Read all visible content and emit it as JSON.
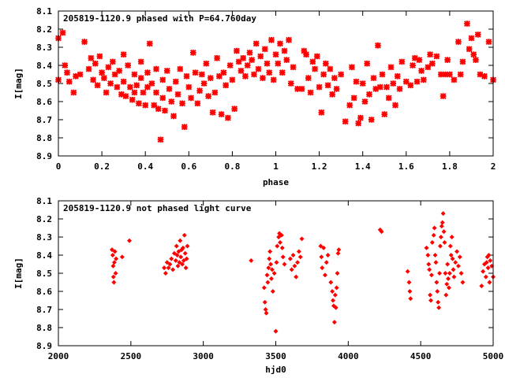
{
  "chart_data": [
    {
      "type": "scatter",
      "title": "205819-1120.9 phased with P=64.760day",
      "xlabel": "phase",
      "ylabel": "I[mag]",
      "xlim": [
        0,
        2
      ],
      "ylim": [
        8.1,
        8.9
      ],
      "y_inverted": true,
      "x_ticks": [
        "0",
        "0.2",
        "0.4",
        "0.6",
        "0.8",
        "1",
        "1.2",
        "1.4",
        "1.6",
        "1.8",
        "2"
      ],
      "y_ticks": [
        "8.1",
        "8.2",
        "8.3",
        "8.4",
        "8.5",
        "8.6",
        "8.7",
        "8.8",
        "8.9"
      ],
      "marker": "star",
      "color": "#ff0000",
      "points": [
        [
          0.0,
          8.25
        ],
        [
          0.0,
          8.48
        ],
        [
          0.02,
          8.22
        ],
        [
          0.03,
          8.4
        ],
        [
          0.04,
          8.44
        ],
        [
          0.05,
          8.49
        ],
        [
          0.07,
          8.55
        ],
        [
          0.08,
          8.46
        ],
        [
          0.1,
          8.45
        ],
        [
          0.12,
          8.27
        ],
        [
          0.14,
          8.42
        ],
        [
          0.15,
          8.36
        ],
        [
          0.16,
          8.48
        ],
        [
          0.17,
          8.39
        ],
        [
          0.18,
          8.51
        ],
        [
          0.19,
          8.35
        ],
        [
          0.2,
          8.44
        ],
        [
          0.21,
          8.47
        ],
        [
          0.22,
          8.55
        ],
        [
          0.23,
          8.41
        ],
        [
          0.24,
          8.5
        ],
        [
          0.25,
          8.38
        ],
        [
          0.26,
          8.45
        ],
        [
          0.27,
          8.52
        ],
        [
          0.28,
          8.43
        ],
        [
          0.29,
          8.56
        ],
        [
          0.3,
          8.34
        ],
        [
          0.3,
          8.49
        ],
        [
          0.31,
          8.57
        ],
        [
          0.32,
          8.4
        ],
        [
          0.33,
          8.52
        ],
        [
          0.34,
          8.59
        ],
        [
          0.35,
          8.45
        ],
        [
          0.35,
          8.55
        ],
        [
          0.36,
          8.51
        ],
        [
          0.37,
          8.61
        ],
        [
          0.38,
          8.38
        ],
        [
          0.38,
          8.47
        ],
        [
          0.39,
          8.55
        ],
        [
          0.4,
          8.62
        ],
        [
          0.41,
          8.44
        ],
        [
          0.41,
          8.52
        ],
        [
          0.42,
          8.28
        ],
        [
          0.43,
          8.5
        ],
        [
          0.44,
          8.62
        ],
        [
          0.45,
          8.42
        ],
        [
          0.45,
          8.55
        ],
        [
          0.46,
          8.64
        ],
        [
          0.47,
          8.81
        ],
        [
          0.48,
          8.48
        ],
        [
          0.48,
          8.58
        ],
        [
          0.49,
          8.65
        ],
        [
          0.5,
          8.43
        ],
        [
          0.51,
          8.53
        ],
        [
          0.52,
          8.6
        ],
        [
          0.53,
          8.68
        ],
        [
          0.54,
          8.49
        ],
        [
          0.55,
          8.56
        ],
        [
          0.56,
          8.42
        ],
        [
          0.57,
          8.61
        ],
        [
          0.58,
          8.74
        ],
        [
          0.59,
          8.46
        ],
        [
          0.6,
          8.52
        ],
        [
          0.61,
          8.58
        ],
        [
          0.62,
          8.33
        ],
        [
          0.63,
          8.44
        ],
        [
          0.64,
          8.61
        ],
        [
          0.65,
          8.54
        ],
        [
          0.66,
          8.45
        ],
        [
          0.67,
          8.5
        ],
        [
          0.68,
          8.39
        ],
        [
          0.69,
          8.57
        ],
        [
          0.7,
          8.47
        ],
        [
          0.71,
          8.66
        ],
        [
          0.72,
          8.55
        ],
        [
          0.73,
          8.36
        ],
        [
          0.74,
          8.46
        ],
        [
          0.75,
          8.67
        ],
        [
          0.76,
          8.44
        ],
        [
          0.77,
          8.51
        ],
        [
          0.78,
          8.69
        ],
        [
          0.79,
          8.4
        ],
        [
          0.8,
          8.48
        ],
        [
          0.81,
          8.64
        ],
        [
          0.82,
          8.32
        ],
        [
          0.83,
          8.38
        ],
        [
          0.84,
          8.43
        ],
        [
          0.85,
          8.36
        ],
        [
          0.86,
          8.46
        ],
        [
          0.87,
          8.4
        ],
        [
          0.88,
          8.33
        ],
        [
          0.89,
          8.37
        ],
        [
          0.9,
          8.45
        ],
        [
          0.91,
          8.28
        ],
        [
          0.92,
          8.42
        ],
        [
          0.93,
          8.35
        ],
        [
          0.94,
          8.47
        ],
        [
          0.95,
          8.31
        ],
        [
          0.96,
          8.39
        ],
        [
          0.97,
          8.44
        ],
        [
          0.98,
          8.26
        ],
        [
          0.99,
          8.48
        ],
        [
          1.0,
          8.34
        ],
        [
          1.01,
          8.39
        ],
        [
          1.02,
          8.28
        ],
        [
          1.03,
          8.44
        ],
        [
          1.04,
          8.32
        ],
        [
          1.05,
          8.37
        ],
        [
          1.06,
          8.26
        ],
        [
          1.07,
          8.5
        ],
        [
          1.08,
          8.41
        ],
        [
          1.1,
          8.53
        ],
        [
          1.12,
          8.53
        ],
        [
          1.13,
          8.32
        ],
        [
          1.14,
          8.34
        ],
        [
          1.15,
          8.47
        ],
        [
          1.16,
          8.55
        ],
        [
          1.17,
          8.38
        ],
        [
          1.18,
          8.42
        ],
        [
          1.19,
          8.35
        ],
        [
          1.2,
          8.52
        ],
        [
          1.21,
          8.66
        ],
        [
          1.22,
          8.45
        ],
        [
          1.23,
          8.39
        ],
        [
          1.24,
          8.51
        ],
        [
          1.25,
          8.42
        ],
        [
          1.26,
          8.56
        ],
        [
          1.27,
          8.47
        ],
        [
          1.28,
          8.53
        ],
        [
          1.3,
          8.45
        ],
        [
          1.32,
          8.71
        ],
        [
          1.34,
          8.62
        ],
        [
          1.35,
          8.41
        ],
        [
          1.36,
          8.58
        ],
        [
          1.37,
          8.49
        ],
        [
          1.38,
          8.72
        ],
        [
          1.39,
          8.69
        ],
        [
          1.4,
          8.5
        ],
        [
          1.41,
          8.6
        ],
        [
          1.42,
          8.39
        ],
        [
          1.43,
          8.56
        ],
        [
          1.44,
          8.7
        ],
        [
          1.45,
          8.47
        ],
        [
          1.46,
          8.53
        ],
        [
          1.47,
          8.29
        ],
        [
          1.48,
          8.52
        ],
        [
          1.49,
          8.45
        ],
        [
          1.5,
          8.67
        ],
        [
          1.51,
          8.52
        ],
        [
          1.52,
          8.58
        ],
        [
          1.53,
          8.41
        ],
        [
          1.54,
          8.5
        ],
        [
          1.55,
          8.62
        ],
        [
          1.56,
          8.46
        ],
        [
          1.57,
          8.53
        ],
        [
          1.58,
          8.38
        ],
        [
          1.6,
          8.49
        ],
        [
          1.62,
          8.51
        ],
        [
          1.63,
          8.4
        ],
        [
          1.64,
          8.36
        ],
        [
          1.65,
          8.49
        ],
        [
          1.66,
          8.37
        ],
        [
          1.67,
          8.43
        ],
        [
          1.68,
          8.48
        ],
        [
          1.7,
          8.41
        ],
        [
          1.71,
          8.34
        ],
        [
          1.72,
          8.39
        ],
        [
          1.74,
          8.35
        ],
        [
          1.76,
          8.45
        ],
        [
          1.77,
          8.57
        ],
        [
          1.78,
          8.45
        ],
        [
          1.79,
          8.37
        ],
        [
          1.8,
          8.45
        ],
        [
          1.82,
          8.48
        ],
        [
          1.84,
          8.27
        ],
        [
          1.85,
          8.45
        ],
        [
          1.86,
          8.38
        ],
        [
          1.88,
          8.17
        ],
        [
          1.89,
          8.31
        ],
        [
          1.9,
          8.25
        ],
        [
          1.91,
          8.34
        ],
        [
          1.92,
          8.37
        ],
        [
          1.93,
          8.23
        ],
        [
          1.94,
          8.45
        ],
        [
          1.96,
          8.46
        ],
        [
          1.98,
          8.27
        ],
        [
          2.0,
          8.48
        ]
      ]
    },
    {
      "type": "scatter",
      "title": "205819-1120.9 not phased light curve",
      "xlabel": "hjd0",
      "ylabel": "I[mag]",
      "xlim": [
        2000,
        5000
      ],
      "ylim": [
        8.1,
        8.9
      ],
      "y_inverted": true,
      "x_ticks": [
        "2000",
        "2500",
        "3000",
        "3500",
        "4000",
        "4500",
        "5000"
      ],
      "y_ticks": [
        "8.1",
        "8.2",
        "8.3",
        "8.4",
        "8.5",
        "8.6",
        "8.7",
        "8.8",
        "8.9"
      ],
      "marker": "diamond",
      "color": "#ff0000",
      "points": [
        [
          2370,
          8.37
        ],
        [
          2375,
          8.4
        ],
        [
          2378,
          8.46
        ],
        [
          2380,
          8.52
        ],
        [
          2383,
          8.55
        ],
        [
          2386,
          8.44
        ],
        [
          2390,
          8.38
        ],
        [
          2395,
          8.5
        ],
        [
          2398,
          8.42
        ],
        [
          2440,
          8.41
        ],
        [
          2490,
          8.32
        ],
        [
          2730,
          8.47
        ],
        [
          2740,
          8.5
        ],
        [
          2750,
          8.44
        ],
        [
          2760,
          8.47
        ],
        [
          2770,
          8.45
        ],
        [
          2780,
          8.42
        ],
        [
          2790,
          8.48
        ],
        [
          2800,
          8.39
        ],
        [
          2810,
          8.43
        ],
        [
          2815,
          8.35
        ],
        [
          2820,
          8.4
        ],
        [
          2825,
          8.46
        ],
        [
          2830,
          8.38
        ],
        [
          2835,
          8.44
        ],
        [
          2840,
          8.32
        ],
        [
          2845,
          8.41
        ],
        [
          2850,
          8.37
        ],
        [
          2855,
          8.45
        ],
        [
          2860,
          8.36
        ],
        [
          2865,
          8.43
        ],
        [
          2870,
          8.29
        ],
        [
          2875,
          8.39
        ],
        [
          2880,
          8.47
        ],
        [
          2885,
          8.42
        ],
        [
          2890,
          8.35
        ],
        [
          3330,
          8.43
        ],
        [
          3420,
          8.58
        ],
        [
          3425,
          8.66
        ],
        [
          3430,
          8.7
        ],
        [
          3435,
          8.72
        ],
        [
          3440,
          8.51
        ],
        [
          3445,
          8.55
        ],
        [
          3450,
          8.47
        ],
        [
          3455,
          8.42
        ],
        [
          3460,
          8.38
        ],
        [
          3465,
          8.45
        ],
        [
          3470,
          8.53
        ],
        [
          3475,
          8.48
        ],
        [
          3480,
          8.6
        ],
        [
          3490,
          8.5
        ],
        [
          3500,
          8.82
        ],
        [
          3505,
          8.44
        ],
        [
          3510,
          8.35
        ],
        [
          3520,
          8.3
        ],
        [
          3525,
          8.28
        ],
        [
          3530,
          8.33
        ],
        [
          3540,
          8.29
        ],
        [
          3545,
          8.36
        ],
        [
          3550,
          8.41
        ],
        [
          3560,
          8.45
        ],
        [
          3600,
          8.42
        ],
        [
          3610,
          8.48
        ],
        [
          3620,
          8.4
        ],
        [
          3630,
          8.46
        ],
        [
          3640,
          8.52
        ],
        [
          3650,
          8.44
        ],
        [
          3660,
          8.38
        ],
        [
          3670,
          8.41
        ],
        [
          3680,
          8.31
        ],
        [
          3810,
          8.35
        ],
        [
          3815,
          8.41
        ],
        [
          3820,
          8.47
        ],
        [
          3830,
          8.36
        ],
        [
          3840,
          8.51
        ],
        [
          3850,
          8.44
        ],
        [
          3860,
          8.4
        ],
        [
          3880,
          8.55
        ],
        [
          3890,
          8.6
        ],
        [
          3895,
          8.65
        ],
        [
          3900,
          8.68
        ],
        [
          3905,
          8.77
        ],
        [
          3910,
          8.62
        ],
        [
          3915,
          8.69
        ],
        [
          3920,
          8.58
        ],
        [
          3925,
          8.5
        ],
        [
          3930,
          8.39
        ],
        [
          3935,
          8.37
        ],
        [
          4220,
          8.26
        ],
        [
          4230,
          8.27
        ],
        [
          4410,
          8.49
        ],
        [
          4420,
          8.55
        ],
        [
          4425,
          8.6
        ],
        [
          4430,
          8.64
        ],
        [
          4540,
          8.36
        ],
        [
          4550,
          8.4
        ],
        [
          4555,
          8.45
        ],
        [
          4560,
          8.48
        ],
        [
          4565,
          8.62
        ],
        [
          4570,
          8.65
        ],
        [
          4575,
          8.51
        ],
        [
          4580,
          8.33
        ],
        [
          4590,
          8.29
        ],
        [
          4595,
          8.25
        ],
        [
          4600,
          8.4
        ],
        [
          4605,
          8.44
        ],
        [
          4610,
          8.55
        ],
        [
          4615,
          8.6
        ],
        [
          4620,
          8.66
        ],
        [
          4625,
          8.69
        ],
        [
          4630,
          8.5
        ],
        [
          4635,
          8.35
        ],
        [
          4640,
          8.3
        ],
        [
          4645,
          8.24
        ],
        [
          4650,
          8.22
        ],
        [
          4655,
          8.17
        ],
        [
          4660,
          8.27
        ],
        [
          4665,
          8.33
        ],
        [
          4670,
          8.5
        ],
        [
          4675,
          8.62
        ],
        [
          4680,
          8.56
        ],
        [
          4685,
          8.45
        ],
        [
          4690,
          8.53
        ],
        [
          4695,
          8.58
        ],
        [
          4700,
          8.5
        ],
        [
          4705,
          8.35
        ],
        [
          4710,
          8.4
        ],
        [
          4715,
          8.3
        ],
        [
          4720,
          8.42
        ],
        [
          4725,
          8.48
        ],
        [
          4730,
          8.52
        ],
        [
          4740,
          8.44
        ],
        [
          4750,
          8.38
        ],
        [
          4760,
          8.46
        ],
        [
          4770,
          8.41
        ],
        [
          4780,
          8.5
        ],
        [
          4790,
          8.55
        ],
        [
          4920,
          8.57
        ],
        [
          4930,
          8.49
        ],
        [
          4940,
          8.45
        ],
        [
          4950,
          8.52
        ],
        [
          4955,
          8.44
        ],
        [
          4960,
          8.41
        ],
        [
          4965,
          8.47
        ],
        [
          4970,
          8.4
        ],
        [
          4975,
          8.55
        ],
        [
          4980,
          8.43
        ],
        [
          4990,
          8.46
        ],
        [
          5000,
          8.52
        ]
      ]
    }
  ]
}
